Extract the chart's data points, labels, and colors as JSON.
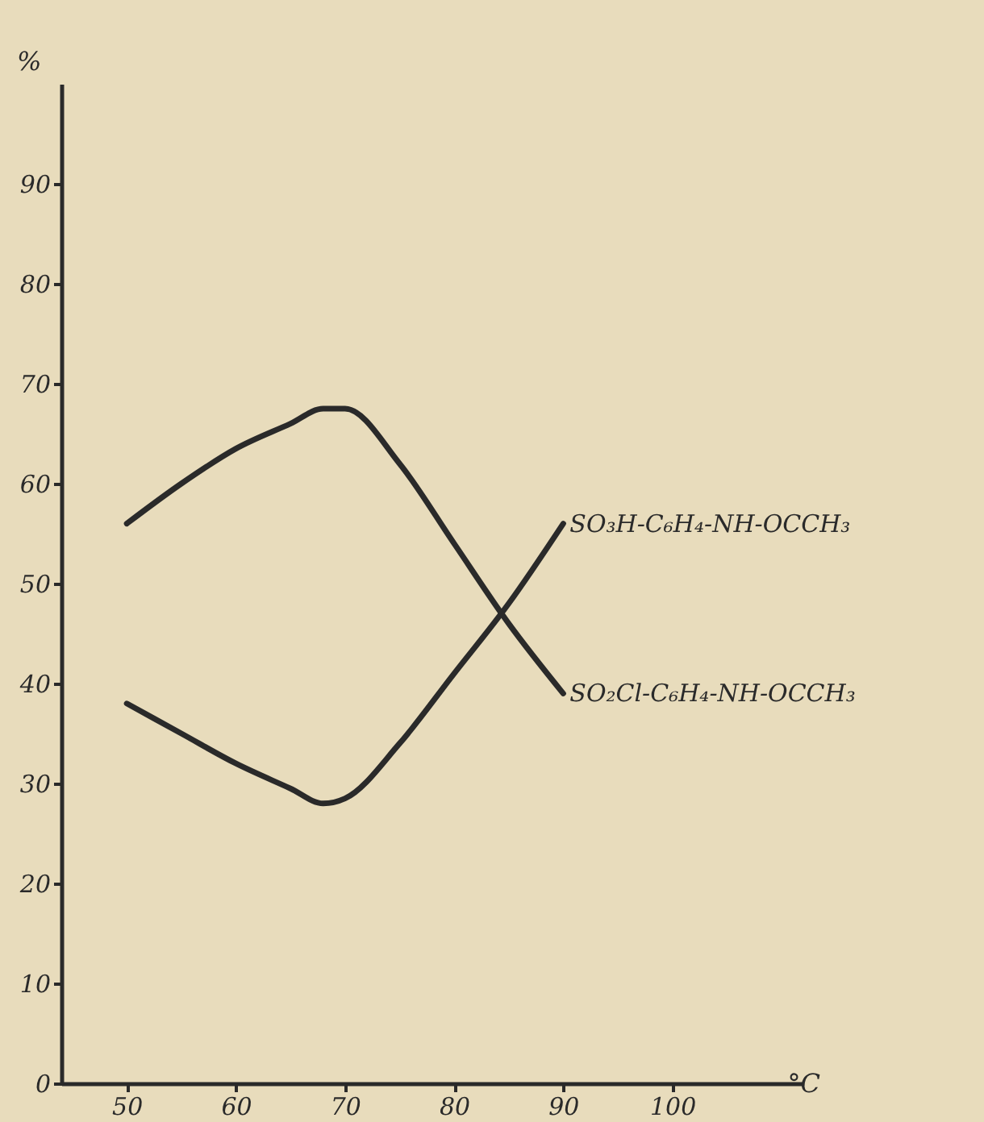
{
  "chart_data": {
    "type": "line",
    "xlabel": "°C",
    "ylabel": "%",
    "x": [
      50,
      55,
      60,
      65,
      68,
      70,
      75,
      80,
      85,
      90
    ],
    "series": [
      {
        "name": "SO₃H-C₆H₄-NH-OCCH₃",
        "color": "#2a2a2a",
        "values": [
          38,
          35,
          32,
          29.5,
          28,
          28.5,
          34,
          41,
          48,
          56
        ]
      },
      {
        "name": "SO₂Cl-C₆H₄-NH-OCCH₃",
        "color": "#2a2a2a",
        "values": [
          56,
          60,
          63.5,
          66,
          67.5,
          67.5,
          62,
          54,
          46,
          39
        ]
      }
    ],
    "xlim": [
      44,
      112
    ],
    "xticks": [
      50,
      60,
      70,
      80,
      90,
      100
    ],
    "ylim": [
      0,
      100
    ],
    "yticks": [
      0,
      10,
      20,
      30,
      40,
      50,
      60,
      70,
      80,
      90
    ],
    "grid": false,
    "line_style": "solid",
    "marker": "none"
  }
}
